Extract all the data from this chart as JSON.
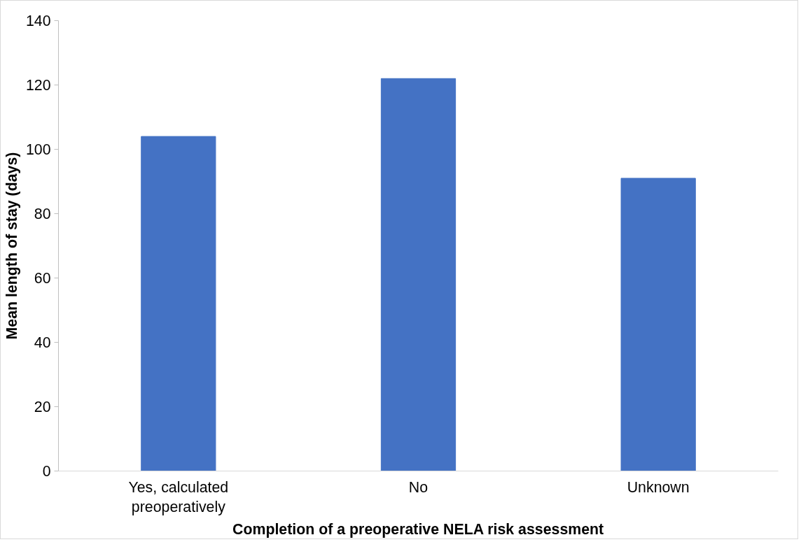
{
  "chart_data": {
    "type": "bar",
    "xlabel": "Completion of a preoperative NELA risk assessment",
    "ylabel": "Mean length of stay (days)",
    "categories": [
      "Yes, calculated preoperatively",
      "No",
      "Unknown"
    ],
    "values": [
      104,
      122,
      91
    ],
    "color": "#4472c4",
    "ylim": [
      0,
      140
    ],
    "yticks": [
      0,
      20,
      40,
      60,
      80,
      100,
      120,
      140
    ],
    "grid": false
  }
}
